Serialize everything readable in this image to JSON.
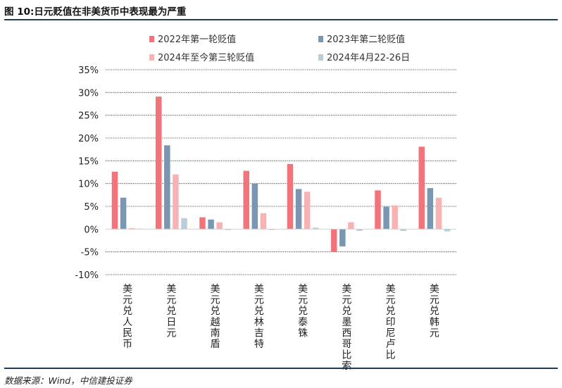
{
  "figure_title": "图 10:日元贬值在非美货币中表现最为严重",
  "source": "数据来源：Wind，中信建投证券",
  "colors": {
    "series1": "#f2737a",
    "series2": "#7a97b2",
    "series3": "#f7b3b3",
    "series4": "#b9ccd8",
    "rule": "#1f3b5a"
  },
  "chart_data": {
    "type": "bar",
    "title": "",
    "xlabel": "",
    "ylabel": "",
    "categories": [
      "美元兑人民币",
      "美元兑日元",
      "美元兑越南盾",
      "美元兑林吉特",
      "美元兑泰铢",
      "美元兑墨西哥比索",
      "美元兑印尼卢比",
      "美元兑韩元"
    ],
    "series": [
      {
        "name": "2022年第一轮贬值",
        "values": [
          12.6,
          29.1,
          2.6,
          12.8,
          14.3,
          -5.0,
          8.5,
          18.1
        ]
      },
      {
        "name": "2023年第二轮贬值",
        "values": [
          6.9,
          18.4,
          2.1,
          10.0,
          8.8,
          -3.8,
          4.9,
          9.0
        ]
      },
      {
        "name": "2024年至今第三轮贬值",
        "values": [
          0.2,
          12.0,
          1.5,
          3.5,
          8.2,
          1.5,
          5.2,
          6.9
        ]
      },
      {
        "name": "2024年4月22-26日",
        "values": [
          0.1,
          2.4,
          -0.2,
          -0.2,
          0.3,
          -0.4,
          -0.4,
          -0.5
        ]
      }
    ],
    "ylim": [
      -10,
      35
    ],
    "yticks": [
      -10,
      -5,
      0,
      5,
      10,
      15,
      20,
      25,
      30,
      35
    ],
    "ytick_labels": [
      "-10%",
      "-5%",
      "0%",
      "5%",
      "10%",
      "15%",
      "20%",
      "25%",
      "30%",
      "35%"
    ],
    "grid": true,
    "legend_position": "top"
  }
}
